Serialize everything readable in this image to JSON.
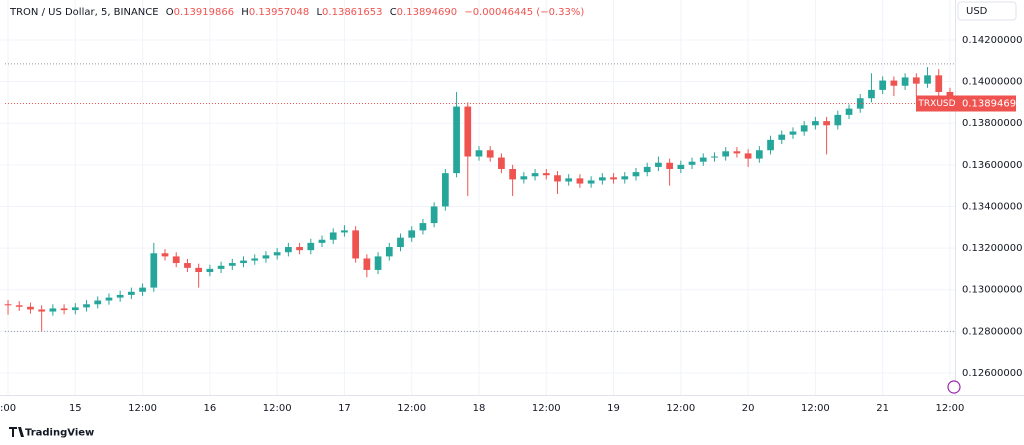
{
  "chart_data": {
    "type": "candlestick",
    "header": {
      "symbol": "TRON / US Dollar, 5, BINANCE",
      "o_label": "O",
      "o": "0.13919866",
      "h_label": "H",
      "h": "0.13957048",
      "l_label": "L",
      "l": "0.13861653",
      "c_label": "C",
      "c": "0.13894690",
      "change": "−0.00046445 (−0.33%)"
    },
    "currency": "USD",
    "brand": "TradingView",
    "up_color": "#26a69a",
    "down_color": "#ef5350",
    "grid": true,
    "x": [
      0,
      2,
      4,
      6,
      8,
      10,
      12,
      14,
      16,
      18,
      20,
      22,
      24,
      26,
      28,
      30,
      32,
      34,
      36,
      38,
      40,
      42,
      44,
      46,
      48,
      50,
      52,
      54,
      56,
      58,
      60,
      62,
      64,
      66,
      68,
      70,
      72,
      74,
      76,
      78,
      80,
      82,
      84,
      86,
      88,
      90,
      92,
      94,
      96,
      98,
      100,
      102,
      104,
      106,
      108,
      110,
      112,
      114,
      116,
      118,
      120,
      122,
      124,
      126,
      128,
      130,
      132,
      134,
      136,
      138,
      140,
      142,
      144,
      146,
      148,
      150,
      152,
      154,
      156,
      158,
      160,
      162,
      164,
      166,
      168
    ],
    "open": [
      0.1293,
      0.12925,
      0.12918,
      0.12905,
      0.12895,
      0.1291,
      0.12902,
      0.12915,
      0.1293,
      0.12948,
      0.12962,
      0.12975,
      0.1299,
      0.1301,
      0.13175,
      0.1316,
      0.13128,
      0.13105,
      0.13085,
      0.131,
      0.13115,
      0.13128,
      0.1314,
      0.1315,
      0.13165,
      0.1318,
      0.13205,
      0.1319,
      0.13225,
      0.1324,
      0.13275,
      0.13285,
      0.1315,
      0.13095,
      0.1316,
      0.13205,
      0.1325,
      0.13285,
      0.1332,
      0.134,
      0.1356,
      0.1388,
      0.1364,
      0.1367,
      0.13635,
      0.1358,
      0.1353,
      0.13545,
      0.1356,
      0.1355,
      0.1352,
      0.13535,
      0.1351,
      0.13525,
      0.1354,
      0.1353,
      0.13545,
      0.13565,
      0.1359,
      0.1361,
      0.1358,
      0.136,
      0.13615,
      0.13635,
      0.1364,
      0.13665,
      0.13655,
      0.1363,
      0.1367,
      0.1372,
      0.13745,
      0.1376,
      0.1379,
      0.1381,
      0.1379,
      0.1384,
      0.1387,
      0.1392,
      0.1396,
      0.14005,
      0.1398,
      0.1402,
      0.1399,
      0.1403,
      0.1395
    ],
    "high": [
      0.1295,
      0.12945,
      0.12938,
      0.12925,
      0.1293,
      0.1293,
      0.12935,
      0.1295,
      0.12968,
      0.12982,
      0.12995,
      0.1301,
      0.1303,
      0.13225,
      0.13195,
      0.1318,
      0.13148,
      0.13125,
      0.1312,
      0.13135,
      0.13148,
      0.1316,
      0.1317,
      0.13185,
      0.132,
      0.13225,
      0.13225,
      0.13245,
      0.1326,
      0.13295,
      0.1331,
      0.13305,
      0.1317,
      0.1318,
      0.13225,
      0.1327,
      0.13305,
      0.1334,
      0.1342,
      0.1358,
      0.1395,
      0.139,
      0.1369,
      0.1369,
      0.13655,
      0.136,
      0.13565,
      0.1358,
      0.1358,
      0.1357,
      0.13555,
      0.13555,
      0.13545,
      0.1356,
      0.1356,
      0.13565,
      0.13585,
      0.1361,
      0.1364,
      0.1363,
      0.1362,
      0.13635,
      0.13655,
      0.1366,
      0.13685,
      0.13685,
      0.13675,
      0.1369,
      0.1374,
      0.13765,
      0.1378,
      0.1381,
      0.1383,
      0.1383,
      0.1386,
      0.1389,
      0.1394,
      0.1404,
      0.14025,
      0.14025,
      0.1404,
      0.1404,
      0.1407,
      0.1406,
      0.1397
    ],
    "low": [
      0.1288,
      0.12898,
      0.12885,
      0.128,
      0.12875,
      0.12882,
      0.12882,
      0.12895,
      0.1291,
      0.12928,
      0.12942,
      0.12955,
      0.1297,
      0.1299,
      0.1314,
      0.13108,
      0.13085,
      0.1301,
      0.13065,
      0.1308,
      0.13095,
      0.13108,
      0.1312,
      0.1313,
      0.13145,
      0.1316,
      0.1317,
      0.1317,
      0.13205,
      0.1322,
      0.13255,
      0.1313,
      0.1306,
      0.13075,
      0.1314,
      0.13185,
      0.1323,
      0.13265,
      0.133,
      0.1338,
      0.1354,
      0.1345,
      0.1362,
      0.13615,
      0.1356,
      0.1345,
      0.1351,
      0.13525,
      0.1353,
      0.1346,
      0.135,
      0.1349,
      0.1349,
      0.13505,
      0.1351,
      0.1351,
      0.13525,
      0.13545,
      0.1357,
      0.135,
      0.1356,
      0.1358,
      0.13595,
      0.13615,
      0.1362,
      0.13635,
      0.1359,
      0.1361,
      0.1365,
      0.137,
      0.13725,
      0.1374,
      0.1377,
      0.1365,
      0.1377,
      0.1382,
      0.1385,
      0.139,
      0.1394,
      0.1393,
      0.1396,
      0.1393,
      0.1397,
      0.139,
      0.1386
    ],
    "close": [
      0.12925,
      0.12918,
      0.12905,
      0.12895,
      0.1291,
      0.12902,
      0.12915,
      0.1293,
      0.12948,
      0.12962,
      0.12975,
      0.1299,
      0.1301,
      0.13175,
      0.1316,
      0.13128,
      0.13105,
      0.13085,
      0.131,
      0.13115,
      0.13128,
      0.1314,
      0.1315,
      0.13165,
      0.1318,
      0.13205,
      0.1319,
      0.13225,
      0.1324,
      0.13275,
      0.13285,
      0.1315,
      0.13095,
      0.1316,
      0.13205,
      0.1325,
      0.13285,
      0.1332,
      0.134,
      0.1356,
      0.1388,
      0.1364,
      0.1367,
      0.13635,
      0.1358,
      0.1353,
      0.13545,
      0.1356,
      0.1355,
      0.1352,
      0.13535,
      0.1351,
      0.13525,
      0.1354,
      0.1353,
      0.13545,
      0.13565,
      0.1359,
      0.1361,
      0.1358,
      0.136,
      0.13615,
      0.13635,
      0.1364,
      0.13665,
      0.13655,
      0.1363,
      0.1367,
      0.1372,
      0.13745,
      0.1376,
      0.1379,
      0.1381,
      0.1379,
      0.1384,
      0.1387,
      0.1392,
      0.1396,
      0.14005,
      0.1398,
      0.1402,
      0.1399,
      0.1403,
      0.1395,
      0.13895
    ],
    "xlim": [
      -0.54,
      168.9
    ],
    "ylim": [
      0.12494,
      0.14392
    ],
    "xticks": [
      {
        "value": 0,
        "label": ":00"
      },
      {
        "value": 12,
        "label": "15"
      },
      {
        "value": 24,
        "label": "12:00"
      },
      {
        "value": 36,
        "label": "16"
      },
      {
        "value": 48,
        "label": "12:00"
      },
      {
        "value": 60,
        "label": "17"
      },
      {
        "value": 72,
        "label": "12:00"
      },
      {
        "value": 84,
        "label": "18"
      },
      {
        "value": 96,
        "label": "12:00"
      },
      {
        "value": 108,
        "label": "19"
      },
      {
        "value": 120,
        "label": "12:00"
      },
      {
        "value": 132,
        "label": "20"
      },
      {
        "value": 144,
        "label": "12:00"
      },
      {
        "value": 156,
        "label": "21"
      },
      {
        "value": 168,
        "label": "12:00"
      }
    ],
    "yticks": [
      {
        "value": 0.126,
        "label": "0.12600000"
      },
      {
        "value": 0.128,
        "label": "0.12800000"
      },
      {
        "value": 0.13,
        "label": "0.13000000"
      },
      {
        "value": 0.132,
        "label": "0.13200000"
      },
      {
        "value": 0.134,
        "label": "0.13400000"
      },
      {
        "value": 0.136,
        "label": "0.13600000"
      },
      {
        "value": 0.138,
        "label": "0.13800000"
      },
      {
        "value": 0.14,
        "label": "0.14000000"
      },
      {
        "value": 0.142,
        "label": "0.14200000"
      }
    ],
    "ref_lines": [
      0.14085,
      0.128
    ],
    "last_price": {
      "value": 0.1389469,
      "label": "0.13894690",
      "symbol": "TRXUSD"
    }
  }
}
